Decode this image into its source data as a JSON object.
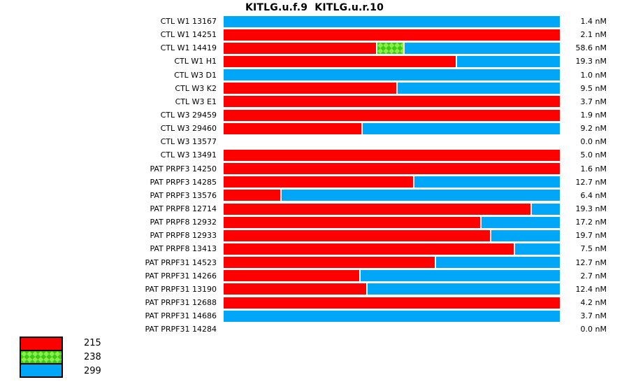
{
  "title": "KITLG.u.f.9  KITLG.u.r.10",
  "unit": "nM",
  "colors": {
    "allele_215": "#ff0000",
    "allele_238": "#5cd62e",
    "allele_299": "#00a6f8"
  },
  "legend": {
    "position": "bottom-left",
    "items": [
      {
        "label": "215",
        "color": "#ff0000",
        "pattern": "solid"
      },
      {
        "label": "238",
        "color": "#5cd62e",
        "pattern": "crosshatch"
      },
      {
        "label": "299",
        "color": "#00a6f8",
        "pattern": "solid"
      }
    ]
  },
  "chart_data": {
    "type": "bar",
    "subtype": "horizontal-100pct-stacked",
    "title": "KITLG.u.f.9  KITLG.u.r.10",
    "series_names": [
      "215",
      "238",
      "299"
    ],
    "xlim_pct": [
      0,
      100
    ],
    "grid": false,
    "value_axis_visible": false,
    "rows": [
      {
        "label": "CTL W1 13167",
        "value_nM": 1.4,
        "value_label": "1.4 nM",
        "s215": 0,
        "s238": 0,
        "s299": 100
      },
      {
        "label": "CTL W1 14251",
        "value_nM": 2.1,
        "value_label": "2.1 nM",
        "s215": 100,
        "s238": 0,
        "s299": 0
      },
      {
        "label": "CTL W1 14419",
        "value_nM": 58.6,
        "value_label": "58.6 nM",
        "s215": 45.7,
        "s238": 7.7,
        "s299": 46.6
      },
      {
        "label": "CTL W1 H1",
        "value_nM": 19.3,
        "value_label": "19.3 nM",
        "s215": 69.4,
        "s238": 0,
        "s299": 30.6
      },
      {
        "label": "CTL W3 D1",
        "value_nM": 1.0,
        "value_label": "1.0 nM",
        "s215": 0,
        "s238": 0,
        "s299": 100
      },
      {
        "label": "CTL W3 K2",
        "value_nM": 9.5,
        "value_label": "9.5 nM",
        "s215": 51.6,
        "s238": 0,
        "s299": 48.4
      },
      {
        "label": "CTL W3 E1",
        "value_nM": 3.7,
        "value_label": "3.7 nM",
        "s215": 100,
        "s238": 0,
        "s299": 0
      },
      {
        "label": "CTL W3 29459",
        "value_nM": 1.9,
        "value_label": "1.9 nM",
        "s215": 100,
        "s238": 0,
        "s299": 0
      },
      {
        "label": "CTL W3 29460",
        "value_nM": 9.2,
        "value_label": "9.2 nM",
        "s215": 41.2,
        "s238": 0,
        "s299": 58.8
      },
      {
        "label": "CTL W3 13577",
        "value_nM": 0.0,
        "value_label": "0.0 nM",
        "s215": 0,
        "s238": 0,
        "s299": 0
      },
      {
        "label": "CTL W3 13491",
        "value_nM": 5.0,
        "value_label": "5.0 nM",
        "s215": 100,
        "s238": 0,
        "s299": 0
      },
      {
        "label": "PAT PRPF3 14250",
        "value_nM": 1.6,
        "value_label": "1.6 nM",
        "s215": 100,
        "s238": 0,
        "s299": 0
      },
      {
        "label": "PAT PRPF3 14285",
        "value_nM": 12.7,
        "value_label": "12.7 nM",
        "s215": 56.5,
        "s238": 0,
        "s299": 43.5
      },
      {
        "label": "PAT PRPF3 13576",
        "value_nM": 6.4,
        "value_label": "6.4 nM",
        "s215": 17.0,
        "s238": 0,
        "s299": 83.0
      },
      {
        "label": "PAT PRPF8 12714",
        "value_nM": 19.3,
        "value_label": "19.3 nM",
        "s215": 91.7,
        "s238": 0,
        "s299": 8.3
      },
      {
        "label": "PAT PRPF8 12932",
        "value_nM": 17.2,
        "value_label": "17.2 nM",
        "s215": 76.7,
        "s238": 0,
        "s299": 23.3
      },
      {
        "label": "PAT PRPF8 12933",
        "value_nM": 19.7,
        "value_label": "19.7 nM",
        "s215": 79.6,
        "s238": 0,
        "s299": 20.4
      },
      {
        "label": "PAT PRPF8 13413",
        "value_nM": 7.5,
        "value_label": "7.5 nM",
        "s215": 86.7,
        "s238": 0,
        "s299": 13.3
      },
      {
        "label": "PAT PRPF31 14523",
        "value_nM": 12.7,
        "value_label": "12.7 nM",
        "s215": 63.0,
        "s238": 0,
        "s299": 37.0
      },
      {
        "label": "PAT PRPF31 14266",
        "value_nM": 2.7,
        "value_label": "2.7 nM",
        "s215": 40.5,
        "s238": 0,
        "s299": 59.5
      },
      {
        "label": "PAT PRPF31 13190",
        "value_nM": 12.4,
        "value_label": "12.4 nM",
        "s215": 42.6,
        "s238": 0,
        "s299": 57.4
      },
      {
        "label": "PAT PRPF31 12688",
        "value_nM": 4.2,
        "value_label": "4.2 nM",
        "s215": 100,
        "s238": 0,
        "s299": 0
      },
      {
        "label": "PAT PRPF31 14686",
        "value_nM": 3.7,
        "value_label": "3.7 nM",
        "s215": 0,
        "s238": 0,
        "s299": 100
      },
      {
        "label": "PAT PRPF31 14284",
        "value_nM": 0.0,
        "value_label": "0.0 nM",
        "s215": 0,
        "s238": 0,
        "s299": 0
      }
    ]
  }
}
